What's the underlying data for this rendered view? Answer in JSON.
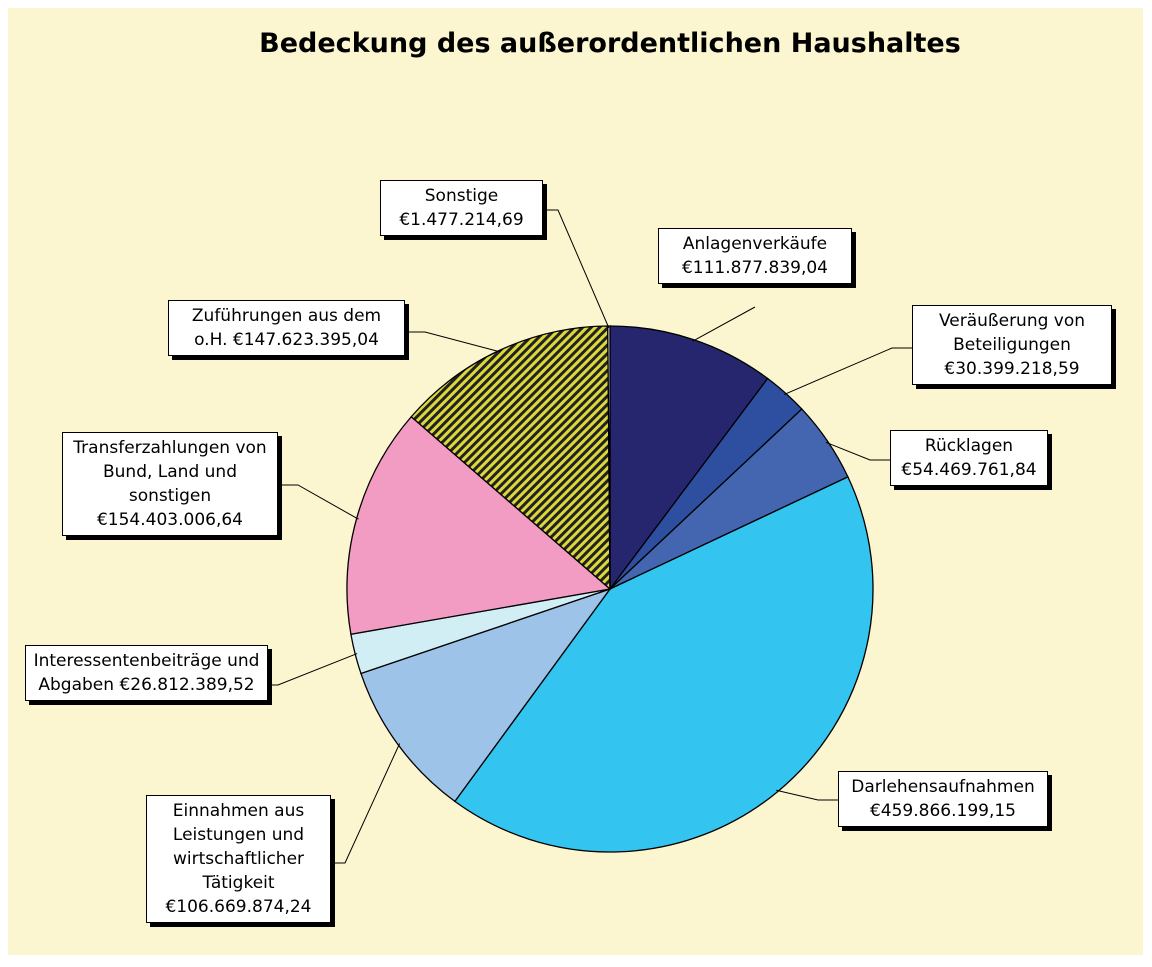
{
  "chart_data": {
    "type": "pie",
    "title": "Bedeckung des außerordentlichen Haushaltes",
    "categories": [
      "Anlagenverkäufe",
      "Veräußerung von Beteiligungen",
      "Rücklagen",
      "Darlehensaufnahmen",
      "Einnahmen aus Leistungen und wirtschaftlicher Tätigkeit",
      "Interessentenbeiträge und Abgaben",
      "Transferzahlungen von Bund, Land und sonstigen",
      "Zuführungen aus dem o.H.",
      "Sonstige"
    ],
    "values": [
      111877839.04,
      30399218.59,
      54469761.84,
      459866199.15,
      106669874.24,
      26812389.52,
      154403006.64,
      147623395.04,
      1477214.69
    ],
    "value_labels": [
      "€111.877.839,04",
      "€30.399.218,59",
      "€54.469.761,84",
      "€459.866.199,15",
      "€106.669.874,24",
      "€26.812.389,52",
      "€154.403.006,64",
      "€147.623.395,04",
      "€1.477.214,69"
    ],
    "colors": [
      "#26266e",
      "#2e4fa0",
      "#4466b0",
      "#33c4ef",
      "#9ec3e8",
      "#d2eef5",
      "#f29bc3",
      "#dcd83c",
      "#ffffff"
    ],
    "hatched_slices": [
      7
    ]
  }
}
